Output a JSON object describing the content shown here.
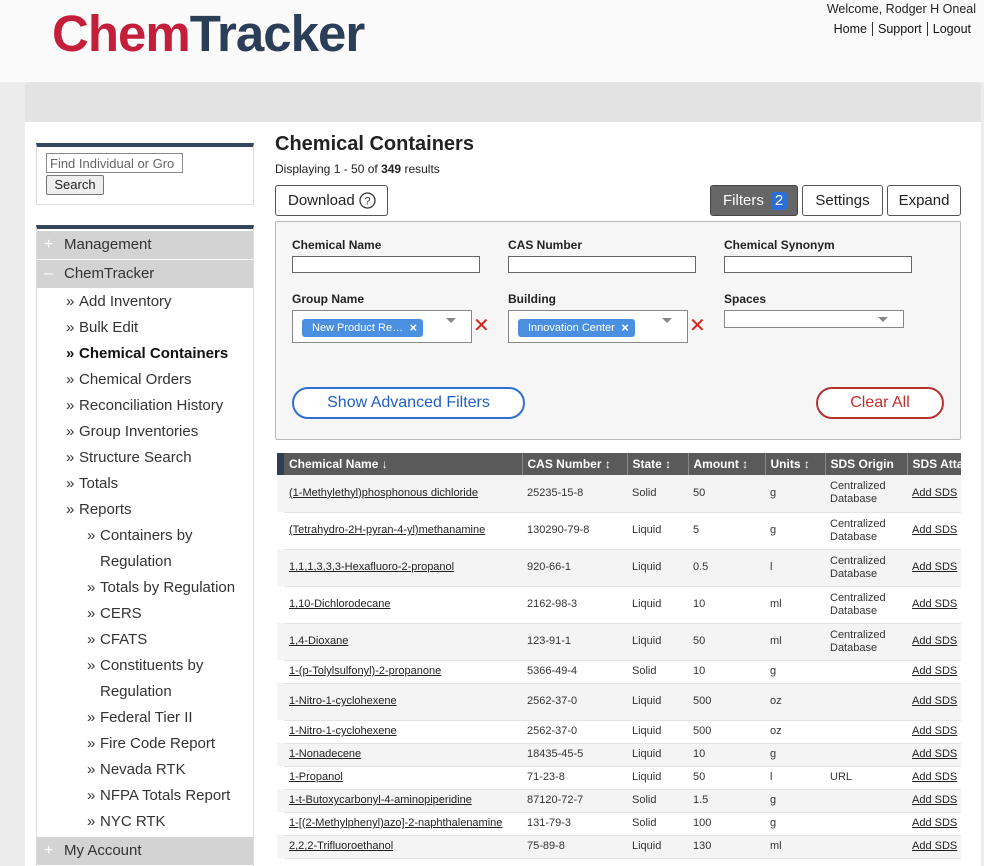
{
  "header": {
    "logo_chem": "Chem",
    "logo_tracker": "Tracker",
    "welcome": "Welcome, Rodger H Oneal",
    "nav": [
      "Home",
      "Support",
      "Logout"
    ]
  },
  "sidebar": {
    "search_placeholder": "Find Individual or Gro",
    "search_button": "Search",
    "sections": [
      "Management",
      "ChemTracker"
    ],
    "items": [
      "Add Inventory",
      "Bulk Edit",
      "Chemical Containers",
      "Chemical Orders",
      "Reconciliation History",
      "Group Inventories",
      "Structure Search",
      "Totals",
      "Reports"
    ],
    "report_items": [
      "Containers by Regulation",
      "Totals by Regulation",
      "CERS",
      "CFATS",
      "Constituents by Regulation",
      "Federal Tier II",
      "Fire Code Report",
      "Nevada RTK",
      "NFPA Totals Report",
      "NYC RTK"
    ],
    "bottom_section": "My Account"
  },
  "main": {
    "title": "Chemical Containers",
    "displaying_prefix": "Displaying 1 - 50 of",
    "total": 349,
    "displaying_suffix": "results",
    "buttons": {
      "download": "Download",
      "filters": "Filters",
      "filter_count": 2,
      "settings": "Settings",
      "expand": "Expand"
    },
    "filters": {
      "labels": [
        "Chemical Name",
        "CAS Number",
        "Chemical Synonym",
        "Group Name",
        "Building",
        "Spaces"
      ],
      "group_chip": "New Product Re…",
      "building_chip": "Innovation Center",
      "advanced": "Show Advanced Filters",
      "clear": "Clear All"
    }
  },
  "table": {
    "columns": [
      "Chemical Name",
      "CAS Number",
      "State",
      "Amount",
      "Units",
      "SDS Origin",
      "SDS Atta"
    ],
    "sds_link": "Add SDS",
    "rows": [
      [
        "(1-Methylethyl)phosphonous dichloride",
        "25235-15-8",
        "Solid",
        50,
        "g",
        "Centralized Database"
      ],
      [
        "(Tetrahydro-2H-pyran-4-yl)methanamine",
        "130290-79-8",
        "Liquid",
        5,
        "g",
        "Centralized Database"
      ],
      [
        "1,1,1,3,3,3-Hexafluoro-2-propanol",
        "920-66-1",
        "Liquid",
        0.5,
        "l",
        "Centralized Database"
      ],
      [
        "1,10-Dichlorodecane",
        "2162-98-3",
        "Liquid",
        10,
        "ml",
        "Centralized Database"
      ],
      [
        "1,4-Dioxane",
        "123-91-1",
        "Liquid",
        50,
        "ml",
        "Centralized Database"
      ],
      [
        "1-(p-Tolylsulfonyl)-2-propanone",
        "5366-49-4",
        "Solid",
        10,
        "g",
        null
      ],
      [
        "1-Nitro-1-cyclohexene",
        "2562-37-0",
        "Liquid",
        500,
        "oz",
        null
      ],
      [
        "1-Nitro-1-cyclohexene",
        "2562-37-0",
        "Liquid",
        500,
        "oz",
        null
      ],
      [
        "1-Nonadecene",
        "18435-45-5",
        "Liquid",
        10,
        "g",
        null
      ],
      [
        "1-Propanol",
        "71-23-8",
        "Liquid",
        50,
        "l",
        "URL"
      ],
      [
        "1-t-Butoxycarbonyl-4-aminopiperidine",
        "87120-72-7",
        "Solid",
        1.5,
        "g",
        null
      ],
      [
        "1-[(2-Methylphenyl)azo]-2-naphthalenamine",
        "131-79-3",
        "Solid",
        100,
        "g",
        null
      ],
      [
        "2,2,2-Trifluoroethanol",
        "75-89-8",
        "Liquid",
        130,
        "ml",
        null
      ]
    ]
  }
}
